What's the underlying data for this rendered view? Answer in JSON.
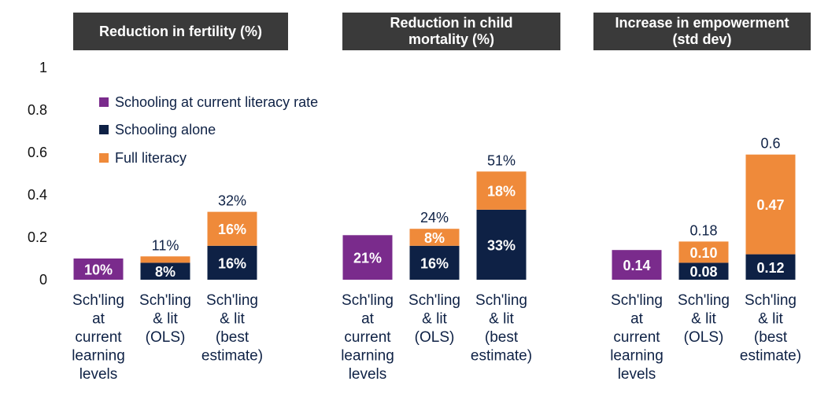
{
  "colors": {
    "purple": "#7a2b8c",
    "navy": "#0e2145",
    "orange": "#ef8a3a",
    "header_bg": "#3a3a3a"
  },
  "headers": [
    "Reduction in fertility (%)",
    "Reduction in child\nmortality (%)",
    "Increase in empowerment\n(std dev)"
  ],
  "chart_data": {
    "type": "bar",
    "stacked": true,
    "ylim": [
      0,
      1
    ],
    "yticks": [
      "0",
      "0.2",
      "0.4",
      "0.6",
      "0.8",
      "1"
    ],
    "ytick_values": [
      0,
      0.2,
      0.4,
      0.6,
      0.8,
      1
    ],
    "grid": false,
    "legend_position": "top-left",
    "legend": [
      {
        "name": "Schooling at current literacy rate",
        "color_key": "purple"
      },
      {
        "name": "Schooling alone",
        "color_key": "navy"
      },
      {
        "name": "Full literacy",
        "color_key": "orange"
      }
    ],
    "panels": [
      {
        "title": "Reduction in fertility (%)",
        "bars": [
          {
            "category": [
              "Sch'ling",
              "at",
              "current",
              "learning",
              "levels"
            ],
            "segments": [
              {
                "series": "Schooling at current literacy rate",
                "value": 0.1,
                "label": "10%"
              }
            ],
            "total_label": ""
          },
          {
            "category": [
              "Sch'ling",
              "& lit",
              "(OLS)"
            ],
            "segments": [
              {
                "series": "Schooling alone",
                "value": 0.08,
                "label": "8%"
              },
              {
                "series": "Full literacy",
                "value": 0.03,
                "label": ""
              }
            ],
            "total_label": "11%"
          },
          {
            "category": [
              "Sch'ling",
              "& lit",
              "(best",
              "estimate)"
            ],
            "segments": [
              {
                "series": "Schooling alone",
                "value": 0.16,
                "label": "16%"
              },
              {
                "series": "Full literacy",
                "value": 0.16,
                "label": "16%"
              }
            ],
            "total_label": "32%"
          }
        ]
      },
      {
        "title": "Reduction in child mortality (%)",
        "bars": [
          {
            "category": [
              "Sch'ling",
              "at",
              "current",
              "learning",
              "levels"
            ],
            "segments": [
              {
                "series": "Schooling at current literacy rate",
                "value": 0.21,
                "label": "21%"
              }
            ],
            "total_label": ""
          },
          {
            "category": [
              "Sch'ling",
              "& lit",
              "(OLS)"
            ],
            "segments": [
              {
                "series": "Schooling alone",
                "value": 0.16,
                "label": "16%"
              },
              {
                "series": "Full literacy",
                "value": 0.08,
                "label": "8%"
              }
            ],
            "total_label": "24%"
          },
          {
            "category": [
              "Sch'ling",
              "& lit",
              "(best",
              "estimate)"
            ],
            "segments": [
              {
                "series": "Schooling alone",
                "value": 0.33,
                "label": "33%"
              },
              {
                "series": "Full literacy",
                "value": 0.18,
                "label": "18%"
              }
            ],
            "total_label": "51%"
          }
        ]
      },
      {
        "title": "Increase in empowerment (std dev)",
        "bars": [
          {
            "category": [
              "Sch'ling",
              "at",
              "current",
              "learning",
              "levels"
            ],
            "segments": [
              {
                "series": "Schooling at current literacy rate",
                "value": 0.14,
                "label": "0.14"
              }
            ],
            "total_label": ""
          },
          {
            "category": [
              "Sch'ling",
              "& lit",
              "(OLS)"
            ],
            "segments": [
              {
                "series": "Schooling alone",
                "value": 0.08,
                "label": "0.08"
              },
              {
                "series": "Full literacy",
                "value": 0.1,
                "label": "0.10"
              }
            ],
            "total_label": "0.18"
          },
          {
            "category": [
              "Sch'ling",
              "& lit",
              "(best",
              "estimate)"
            ],
            "segments": [
              {
                "series": "Schooling alone",
                "value": 0.12,
                "label": "0.12"
              },
              {
                "series": "Full literacy",
                "value": 0.47,
                "label": "0.47"
              }
            ],
            "total_label": "0.6"
          }
        ]
      }
    ]
  }
}
